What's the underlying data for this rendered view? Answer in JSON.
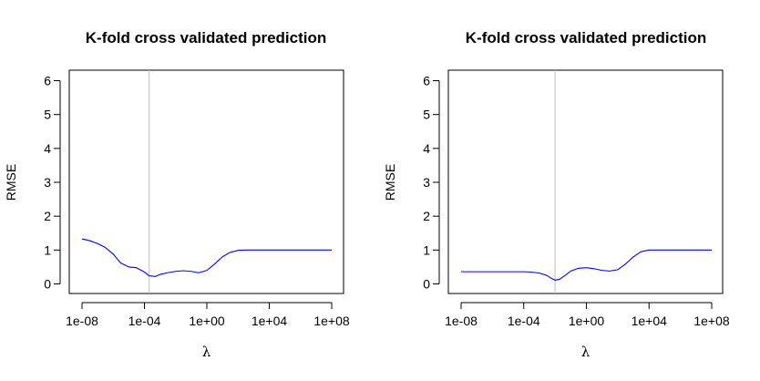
{
  "chart_data": [
    {
      "type": "line",
      "title": "K-fold cross validated prediction",
      "xlabel": "λ",
      "ylabel": "RMSE",
      "x_scale": "log10",
      "xlim": [
        1e-08,
        100000000.0
      ],
      "ylim": [
        0,
        6
      ],
      "x_ticks": [
        1e-08,
        0.0001,
        1.0,
        10000.0,
        100000000.0
      ],
      "x_tick_labels": [
        "1e-08",
        "1e-04",
        "1e+00",
        "1e+04",
        "1e+08"
      ],
      "y_ticks": [
        0,
        1,
        2,
        3,
        4,
        5,
        6
      ],
      "y_tick_labels": [
        "0",
        "1",
        "2",
        "3",
        "4",
        "5",
        "6"
      ],
      "grid": false,
      "series_color": "#0000ff",
      "vline_color": "#bebebe",
      "selected_lambda": 0.0002,
      "series": [
        {
          "x": [
            1e-08,
            3e-08,
            1e-07,
            3e-07,
            1e-06,
            3e-06,
            1e-05,
            3e-05,
            0.0001,
            0.0002,
            0.0005,
            0.001,
            0.003,
            0.01,
            0.03,
            0.1,
            0.3,
            1,
            3,
            10,
            30,
            100,
            300,
            1000,
            10000.0,
            100000.0,
            1000000.0,
            10000000.0,
            100000000.0
          ],
          "y": [
            1.33,
            1.28,
            1.19,
            1.08,
            0.88,
            0.62,
            0.5,
            0.48,
            0.35,
            0.24,
            0.22,
            0.28,
            0.33,
            0.37,
            0.39,
            0.37,
            0.33,
            0.4,
            0.58,
            0.8,
            0.93,
            0.99,
            1.0,
            1.0,
            1.0,
            1.0,
            1.0,
            1.0,
            1.0
          ]
        }
      ]
    },
    {
      "type": "line",
      "title": "K-fold cross validated prediction",
      "xlabel": "λ",
      "ylabel": "RMSE",
      "x_scale": "log10",
      "xlim": [
        1e-08,
        100000000.0
      ],
      "ylim": [
        0,
        6
      ],
      "x_ticks": [
        1e-08,
        0.0001,
        1.0,
        10000.0,
        100000000.0
      ],
      "x_tick_labels": [
        "1e-08",
        "1e-04",
        "1e+00",
        "1e+04",
        "1e+08"
      ],
      "y_ticks": [
        0,
        1,
        2,
        3,
        4,
        5,
        6
      ],
      "y_tick_labels": [
        "0",
        "1",
        "2",
        "3",
        "4",
        "5",
        "6"
      ],
      "grid": false,
      "series_color": "#0000ff",
      "vline_color": "#bebebe",
      "selected_lambda": 0.01,
      "series": [
        {
          "x": [
            1e-08,
            1e-07,
            1e-06,
            1e-05,
            0.0001,
            0.0003,
            0.001,
            0.003,
            0.006,
            0.01,
            0.02,
            0.05,
            0.1,
            0.3,
            1,
            3,
            10,
            30,
            100,
            300,
            1000,
            3000,
            10000.0,
            100000.0,
            1000000.0,
            10000000.0,
            100000000.0
          ],
          "y": [
            0.36,
            0.36,
            0.36,
            0.36,
            0.36,
            0.35,
            0.32,
            0.25,
            0.16,
            0.11,
            0.14,
            0.27,
            0.38,
            0.46,
            0.48,
            0.45,
            0.4,
            0.38,
            0.42,
            0.58,
            0.8,
            0.95,
            1.0,
            1.0,
            1.0,
            1.0,
            1.0
          ]
        }
      ]
    }
  ]
}
